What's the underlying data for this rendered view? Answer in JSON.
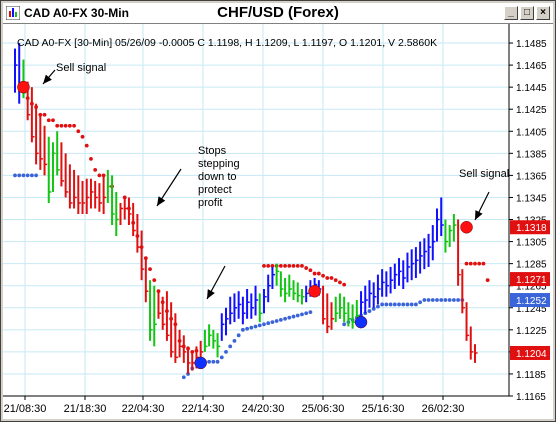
{
  "window": {
    "symbol_label": "CAD A0-FX 30-Min",
    "title": "CHF/USD (Forex)",
    "minimize_glyph": "_",
    "restore_glyph": "□",
    "close_glyph": "×"
  },
  "chart_data": {
    "type": "line",
    "title": "CHF/USD (Forex)",
    "header": "CAD A0-FX [30-Min] 05/26/09  -0.0005 C 1.1198, H 1.1209, L 1.1197, O 1.1201, V 2.5860K",
    "yticks": [
      "1.1485",
      "1.1465",
      "1.1445",
      "1.1425",
      "1.1405",
      "1.1385",
      "1.1365",
      "1.1345",
      "1.1325",
      "1.1305",
      "1.1285",
      "1.1265",
      "1.1245",
      "1.1225",
      "1.1205",
      "1.1185",
      "1.1165"
    ],
    "xticks": [
      "21/08:30",
      "21/18:30",
      "22/04:30",
      "22/14:30",
      "24/20:30",
      "25/06:30",
      "25/16:30",
      "26/02:30"
    ],
    "ylim": [
      1.1165,
      1.1495
    ],
    "price_badges": [
      {
        "value": "1.1318",
        "color": "#e01010"
      },
      {
        "value": "1.1271",
        "color": "#e01010"
      },
      {
        "value": "1.1252",
        "color": "#3a64d8"
      },
      {
        "value": "1.1204",
        "color": "#e01010"
      }
    ],
    "bars": [
      [
        1.148,
        1.144,
        1.1465,
        "#1010ff"
      ],
      [
        1.1485,
        1.143,
        1.1445,
        "#1010ff"
      ],
      [
        1.147,
        1.1435,
        1.144,
        "#12c512"
      ],
      [
        1.145,
        1.1415,
        1.142,
        "#e01010"
      ],
      [
        1.1445,
        1.1395,
        1.14,
        "#e01010"
      ],
      [
        1.143,
        1.1375,
        1.1385,
        "#e01010"
      ],
      [
        1.142,
        1.137,
        1.138,
        "#e01010"
      ],
      [
        1.141,
        1.1365,
        1.1375,
        "#e01010"
      ],
      [
        1.14,
        1.134,
        1.135,
        "#12c512"
      ],
      [
        1.1395,
        1.135,
        1.1385,
        "#12c512"
      ],
      [
        1.1405,
        1.1365,
        1.137,
        "#12c512"
      ],
      [
        1.1395,
        1.1355,
        1.136,
        "#e01010"
      ],
      [
        1.1385,
        1.1345,
        1.135,
        "#e01010"
      ],
      [
        1.1375,
        1.1335,
        1.134,
        "#e01010"
      ],
      [
        1.137,
        1.1335,
        1.1345,
        "#e01010"
      ],
      [
        1.1365,
        1.133,
        1.134,
        "#e01010"
      ],
      [
        1.136,
        1.133,
        1.134,
        "#e01010"
      ],
      [
        1.1362,
        1.133,
        1.1345,
        "#e01010"
      ],
      [
        1.1362,
        1.1335,
        1.135,
        "#e01010"
      ],
      [
        1.136,
        1.1335,
        1.1345,
        "#e01010"
      ],
      [
        1.1358,
        1.1332,
        1.134,
        "#e01010"
      ],
      [
        1.1365,
        1.133,
        1.1345,
        "#e01010"
      ],
      [
        1.137,
        1.134,
        1.1355,
        "#12c512"
      ],
      [
        1.1365,
        1.132,
        1.133,
        "#12c512"
      ],
      [
        1.135,
        1.131,
        1.1325,
        "#12c512"
      ],
      [
        1.134,
        1.132,
        1.1335,
        "#e01010"
      ],
      [
        1.1345,
        1.1325,
        1.1335,
        "#e01010"
      ],
      [
        1.1345,
        1.132,
        1.133,
        "#e01010"
      ],
      [
        1.134,
        1.131,
        1.1315,
        "#e01010"
      ],
      [
        1.133,
        1.1295,
        1.13,
        "#e01010"
      ],
      [
        1.1315,
        1.127,
        1.128,
        "#e01010"
      ],
      [
        1.129,
        1.125,
        1.126,
        "#e01010"
      ],
      [
        1.127,
        1.1215,
        1.1225,
        "#12c512"
      ],
      [
        1.1265,
        1.121,
        1.123,
        "#12c512"
      ],
      [
        1.126,
        1.1235,
        1.124,
        "#e01010"
      ],
      [
        1.1255,
        1.1225,
        1.123,
        "#e01010"
      ],
      [
        1.126,
        1.1215,
        1.122,
        "#e01010"
      ],
      [
        1.125,
        1.12,
        1.1205,
        "#e01010"
      ],
      [
        1.124,
        1.1195,
        1.12,
        "#e01010"
      ],
      [
        1.1225,
        1.12,
        1.121,
        "#e01010"
      ],
      [
        1.122,
        1.1195,
        1.1205,
        "#e01010"
      ],
      [
        1.121,
        1.1185,
        1.1195,
        "#e01010"
      ],
      [
        1.1205,
        1.1188,
        1.1195,
        "#e01010"
      ],
      [
        1.121,
        1.119,
        1.12,
        "#e01010"
      ],
      [
        1.1215,
        1.12,
        1.1205,
        "#e01010"
      ],
      [
        1.1225,
        1.1205,
        1.121,
        "#12c512"
      ],
      [
        1.123,
        1.121,
        1.122,
        "#12c512"
      ],
      [
        1.1225,
        1.1208,
        1.1215,
        "#12c512"
      ],
      [
        1.1222,
        1.12,
        1.121,
        "#12c512"
      ],
      [
        1.124,
        1.1215,
        1.123,
        "#1010ff"
      ],
      [
        1.1245,
        1.122,
        1.1235,
        "#1010ff"
      ],
      [
        1.1255,
        1.123,
        1.124,
        "#1010ff"
      ],
      [
        1.1258,
        1.1232,
        1.1245,
        "#1010ff"
      ],
      [
        1.126,
        1.1235,
        1.1248,
        "#1010ff"
      ],
      [
        1.1255,
        1.123,
        1.124,
        "#1010ff"
      ],
      [
        1.1262,
        1.1235,
        1.125,
        "#1010ff"
      ],
      [
        1.1258,
        1.1235,
        1.1245,
        "#1010ff"
      ],
      [
        1.1265,
        1.1238,
        1.1252,
        "#1010ff"
      ],
      [
        1.1258,
        1.1232,
        1.124,
        "#12c512"
      ],
      [
        1.1262,
        1.124,
        1.1255,
        "#1010ff"
      ],
      [
        1.1275,
        1.125,
        1.1265,
        "#1010ff"
      ],
      [
        1.1282,
        1.1262,
        1.1275,
        "#1010ff"
      ],
      [
        1.1285,
        1.1265,
        1.1278,
        "#12c512"
      ],
      [
        1.1278,
        1.1255,
        1.1262,
        "#12c512"
      ],
      [
        1.1272,
        1.125,
        1.1258,
        "#12c512"
      ],
      [
        1.1275,
        1.1255,
        1.1262,
        "#12c512"
      ],
      [
        1.127,
        1.1252,
        1.1258,
        "#12c512"
      ],
      [
        1.1268,
        1.125,
        1.1256,
        "#12c512"
      ],
      [
        1.1262,
        1.1248,
        1.1255,
        "#12c512"
      ],
      [
        1.1265,
        1.125,
        1.1258,
        "#1010ff"
      ],
      [
        1.127,
        1.1255,
        1.1262,
        "#1010ff"
      ],
      [
        1.1272,
        1.1258,
        1.1266,
        "#1010ff"
      ],
      [
        1.127,
        1.1256,
        1.1262,
        "#1010ff"
      ],
      [
        1.1265,
        1.123,
        1.1235,
        "#e01010"
      ],
      [
        1.1258,
        1.1222,
        1.1228,
        "#e01010"
      ],
      [
        1.125,
        1.1225,
        1.1235,
        "#e01010"
      ],
      [
        1.1255,
        1.1232,
        1.124,
        "#12c512"
      ],
      [
        1.1258,
        1.1235,
        1.1245,
        "#12c512"
      ],
      [
        1.1255,
        1.1232,
        1.124,
        "#12c512"
      ],
      [
        1.125,
        1.1228,
        1.1235,
        "#12c512"
      ],
      [
        1.1248,
        1.1226,
        1.1232,
        "#12c512"
      ],
      [
        1.1252,
        1.123,
        1.1238,
        "#12c512"
      ],
      [
        1.126,
        1.1238,
        1.125,
        "#1010ff"
      ],
      [
        1.1265,
        1.124,
        1.1252,
        "#1010ff"
      ],
      [
        1.127,
        1.1245,
        1.1258,
        "#1010ff"
      ],
      [
        1.1268,
        1.1245,
        1.1255,
        "#1010ff"
      ],
      [
        1.1275,
        1.1248,
        1.1262,
        "#1010ff"
      ],
      [
        1.128,
        1.1255,
        1.1268,
        "#1010ff"
      ],
      [
        1.1278,
        1.1255,
        1.1265,
        "#1010ff"
      ],
      [
        1.1282,
        1.1258,
        1.127,
        "#1010ff"
      ],
      [
        1.1285,
        1.1262,
        1.1275,
        "#1010ff"
      ],
      [
        1.129,
        1.1265,
        1.1278,
        "#1010ff"
      ],
      [
        1.1288,
        1.1262,
        1.1272,
        "#1010ff"
      ],
      [
        1.1295,
        1.1268,
        1.1282,
        "#1010ff"
      ],
      [
        1.1298,
        1.127,
        1.1285,
        "#1010ff"
      ],
      [
        1.13,
        1.1272,
        1.1288,
        "#1010ff"
      ],
      [
        1.1305,
        1.1276,
        1.1292,
        "#1010ff"
      ],
      [
        1.1308,
        1.128,
        1.1296,
        "#1010ff"
      ],
      [
        1.1312,
        1.1282,
        1.13,
        "#1010ff"
      ],
      [
        1.132,
        1.1288,
        1.1305,
        "#1010ff"
      ],
      [
        1.1335,
        1.1305,
        1.1325,
        "#1010ff"
      ],
      [
        1.1345,
        1.131,
        1.132,
        "#1010ff"
      ],
      [
        1.1325,
        1.1295,
        1.1305,
        "#12c512"
      ],
      [
        1.132,
        1.13,
        1.1315,
        "#12c512"
      ],
      [
        1.133,
        1.1305,
        1.132,
        "#12c512"
      ],
      [
        1.1325,
        1.1265,
        1.1275,
        "#e01010"
      ],
      [
        1.128,
        1.124,
        1.1245,
        "#e01010"
      ],
      [
        1.125,
        1.1215,
        1.122,
        "#e01010"
      ],
      [
        1.1228,
        1.1198,
        1.1205,
        "#e01010"
      ],
      [
        1.1212,
        1.1195,
        1.1204,
        "#e01010"
      ]
    ],
    "stop_series": [
      {
        "color": "#e01010",
        "points": [
          [
            2,
            1.1445
          ],
          [
            3,
            1.1435
          ],
          [
            4,
            1.143
          ],
          [
            5,
            1.1427
          ],
          [
            6,
            1.142
          ],
          [
            7,
            1.142
          ],
          [
            8,
            1.1415
          ],
          [
            9,
            1.1415
          ],
          [
            10,
            1.141
          ],
          [
            11,
            1.141
          ],
          [
            12,
            1.141
          ],
          [
            13,
            1.141
          ],
          [
            14,
            1.141
          ],
          [
            15,
            1.1405
          ],
          [
            16,
            1.14
          ],
          [
            17,
            1.1392
          ],
          [
            18,
            1.138
          ],
          [
            19,
            1.137
          ],
          [
            20,
            1.1365
          ],
          [
            21,
            1.1365
          ],
          [
            23,
            1.1355
          ],
          [
            26,
            1.1345
          ],
          [
            27,
            1.1335
          ],
          [
            28,
            1.1322
          ],
          [
            29,
            1.131
          ],
          [
            30,
            1.13
          ],
          [
            31,
            1.129
          ],
          [
            32,
            1.128
          ],
          [
            33,
            1.127
          ],
          [
            34,
            1.126
          ],
          [
            35,
            1.125
          ],
          [
            36,
            1.1242
          ],
          [
            37,
            1.1235
          ],
          [
            38,
            1.123
          ],
          [
            39,
            1.1215
          ],
          [
            40,
            1.121
          ],
          [
            41,
            1.1208
          ],
          [
            42,
            1.1205
          ],
          [
            43,
            1.1206
          ]
        ]
      },
      {
        "color": "#e01010",
        "points": [
          [
            59,
            1.1283
          ],
          [
            60,
            1.1283
          ],
          [
            61,
            1.1283
          ],
          [
            62,
            1.1283
          ],
          [
            63,
            1.1283
          ],
          [
            64,
            1.1283
          ],
          [
            65,
            1.1283
          ],
          [
            66,
            1.1283
          ],
          [
            67,
            1.1283
          ],
          [
            68,
            1.1283
          ],
          [
            69,
            1.1281
          ],
          [
            70,
            1.1279
          ],
          [
            71,
            1.1276
          ],
          [
            72,
            1.1276
          ],
          [
            73,
            1.1274
          ],
          [
            74,
            1.1272
          ],
          [
            75,
            1.1272
          ],
          [
            76,
            1.127
          ],
          [
            77,
            1.1268
          ],
          [
            78,
            1.1266
          ]
        ]
      },
      {
        "color": "#e01010",
        "points": [
          [
            107,
            1.1285
          ],
          [
            108,
            1.1285
          ],
          [
            109,
            1.1285
          ],
          [
            110,
            1.1285
          ],
          [
            111,
            1.1285
          ],
          [
            112,
            1.127
          ]
        ]
      },
      {
        "color": "#3a64d8",
        "points": [
          [
            0,
            1.1365
          ],
          [
            1,
            1.1365
          ],
          [
            2,
            1.1365
          ],
          [
            3,
            1.1365
          ],
          [
            4,
            1.1365
          ],
          [
            5,
            1.1365
          ]
        ]
      },
      {
        "color": "#3a64d8",
        "points": [
          [
            40,
            1.1182
          ],
          [
            41,
            1.1185
          ],
          [
            42,
            1.119
          ],
          [
            43,
            1.1195
          ],
          [
            44,
            1.1195
          ],
          [
            45,
            1.1196
          ],
          [
            46,
            1.1196
          ],
          [
            47,
            1.1196
          ],
          [
            48,
            1.1196
          ],
          [
            49,
            1.12
          ],
          [
            50,
            1.1205
          ],
          [
            51,
            1.121
          ],
          [
            52,
            1.1215
          ],
          [
            53,
            1.122
          ],
          [
            54,
            1.1225
          ],
          [
            55,
            1.1226
          ],
          [
            56,
            1.1227
          ],
          [
            57,
            1.1228
          ],
          [
            58,
            1.1229
          ],
          [
            59,
            1.123
          ],
          [
            60,
            1.1231
          ],
          [
            61,
            1.1232
          ],
          [
            62,
            1.1233
          ],
          [
            63,
            1.1234
          ],
          [
            64,
            1.1235
          ],
          [
            65,
            1.1236
          ],
          [
            66,
            1.1237
          ],
          [
            67,
            1.1238
          ],
          [
            68,
            1.1239
          ],
          [
            69,
            1.124
          ],
          [
            70,
            1.1241
          ]
        ]
      },
      {
        "color": "#3a64d8",
        "points": [
          [
            78,
            1.123
          ],
          [
            79,
            1.1232
          ],
          [
            80,
            1.1234
          ],
          [
            81,
            1.1236
          ],
          [
            82,
            1.1238
          ],
          [
            83,
            1.124
          ],
          [
            84,
            1.1242
          ],
          [
            85,
            1.1244
          ],
          [
            86,
            1.1246
          ],
          [
            87,
            1.1248
          ],
          [
            88,
            1.1248
          ],
          [
            89,
            1.1248
          ],
          [
            90,
            1.1248
          ],
          [
            91,
            1.1248
          ],
          [
            92,
            1.1248
          ],
          [
            93,
            1.1248
          ],
          [
            94,
            1.1248
          ],
          [
            95,
            1.1248
          ],
          [
            96,
            1.125
          ],
          [
            97,
            1.1252
          ],
          [
            98,
            1.1252
          ],
          [
            99,
            1.1252
          ],
          [
            100,
            1.1252
          ],
          [
            101,
            1.1252
          ],
          [
            102,
            1.1252
          ],
          [
            103,
            1.1252
          ],
          [
            104,
            1.1252
          ],
          [
            105,
            1.1252
          ],
          [
            106,
            1.1252
          ]
        ]
      }
    ],
    "signals": [
      {
        "bar": 2,
        "price": 1.1445,
        "color": "#ff1010"
      },
      {
        "bar": 44,
        "price": 1.1195,
        "color": "#1030ff"
      },
      {
        "bar": 71,
        "price": 1.126,
        "color": "#ff1010"
      },
      {
        "bar": 82,
        "price": 1.1232,
        "color": "#1030ff"
      },
      {
        "bar": 107,
        "price": 1.1318,
        "color": "#ff1010"
      }
    ],
    "annotations": [
      {
        "lines": [
          "Sell signal"
        ]
      },
      {
        "lines": [
          "Stops",
          "stepping",
          "down to",
          "protect",
          "profit"
        ]
      },
      {
        "lines": [
          "Sell signal"
        ]
      }
    ]
  }
}
